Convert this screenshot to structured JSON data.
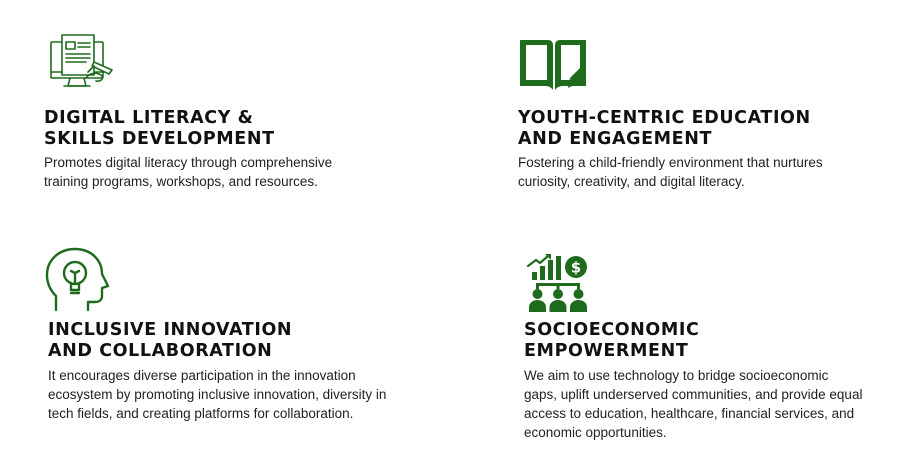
{
  "colors": {
    "accent": "#1e6b1e",
    "text": "#111111"
  },
  "cards": [
    {
      "icon": "document-pen-icon",
      "title_lines": [
        "DIGITAL LITERACY &",
        "SKILLS DEVELOPMENT"
      ],
      "desc_lines": [
        "Promotes digital literacy through comprehensive",
        "training programs, workshops, and resources."
      ]
    },
    {
      "icon": "open-book-pen-icon",
      "title_lines": [
        "YOUTH-CENTRIC EDUCATION",
        "AND ENGAGEMENT"
      ],
      "desc_lines": [
        "Fostering a child-friendly environment that nurtures",
        "curiosity, creativity, and digital literacy."
      ]
    },
    {
      "icon": "head-lightbulb-icon",
      "title_lines": [
        "INCLUSIVE INNOVATION",
        "AND COLLABORATION"
      ],
      "desc_lines": [
        "It encourages diverse participation in the innovation",
        "ecosystem by promoting inclusive innovation, diversity in",
        "tech fields, and creating platforms for collaboration."
      ]
    },
    {
      "icon": "growth-people-icon",
      "title_lines": [
        "SOCIOECONOMIC",
        "EMPOWERMENT"
      ],
      "desc_lines": [
        "We aim to use technology to bridge socioeconomic",
        "gaps, uplift underserved communities, and provide equal",
        "access to education, healthcare, financial services, and",
        "economic opportunities."
      ]
    }
  ]
}
